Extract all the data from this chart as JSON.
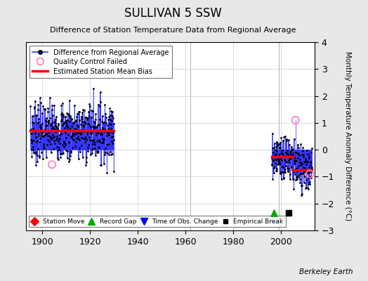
{
  "title": "SULLIVAN 5 SSW",
  "subtitle": "Difference of Station Temperature Data from Regional Average",
  "ylabel": "Monthly Temperature Anomaly Difference (°C)",
  "bg_color": "#e8e8e8",
  "plot_bg_color": "#ffffff",
  "xlim": [
    1893,
    2014
  ],
  "ylim": [
    -3,
    4
  ],
  "yticks": [
    -3,
    -2,
    -1,
    0,
    1,
    2,
    3,
    4
  ],
  "xticks": [
    1900,
    1920,
    1940,
    1960,
    1980,
    2000
  ],
  "seg1_years": [
    1895,
    1930
  ],
  "seg1_mean": 0.7,
  "seg2a_years": [
    1996,
    2005
  ],
  "seg2a_mean": -0.25,
  "seg2b_years": [
    2005,
    2013
  ],
  "seg2b_mean": -0.75,
  "vline1_x": 1962,
  "vline2_x": 1999,
  "record_gap_x": 1997,
  "record_gap_y": -2.35,
  "empirical_break_x": 2003,
  "empirical_break_y": -2.35,
  "qc_fail_early_x": 1904,
  "qc_fail_early_y": -0.55,
  "qc_fail_late1_x": 2006,
  "qc_fail_late1_y": 1.1,
  "qc_fail_late2_x": 2012,
  "qc_fail_late2_y": -0.9,
  "line_color": "#3333ff",
  "dot_color": "#000000",
  "bias_color": "#ff0000",
  "qc_color": "#ff80c0",
  "vline_color": "#999999",
  "berkeley_earth_text": "Berkeley Earth"
}
